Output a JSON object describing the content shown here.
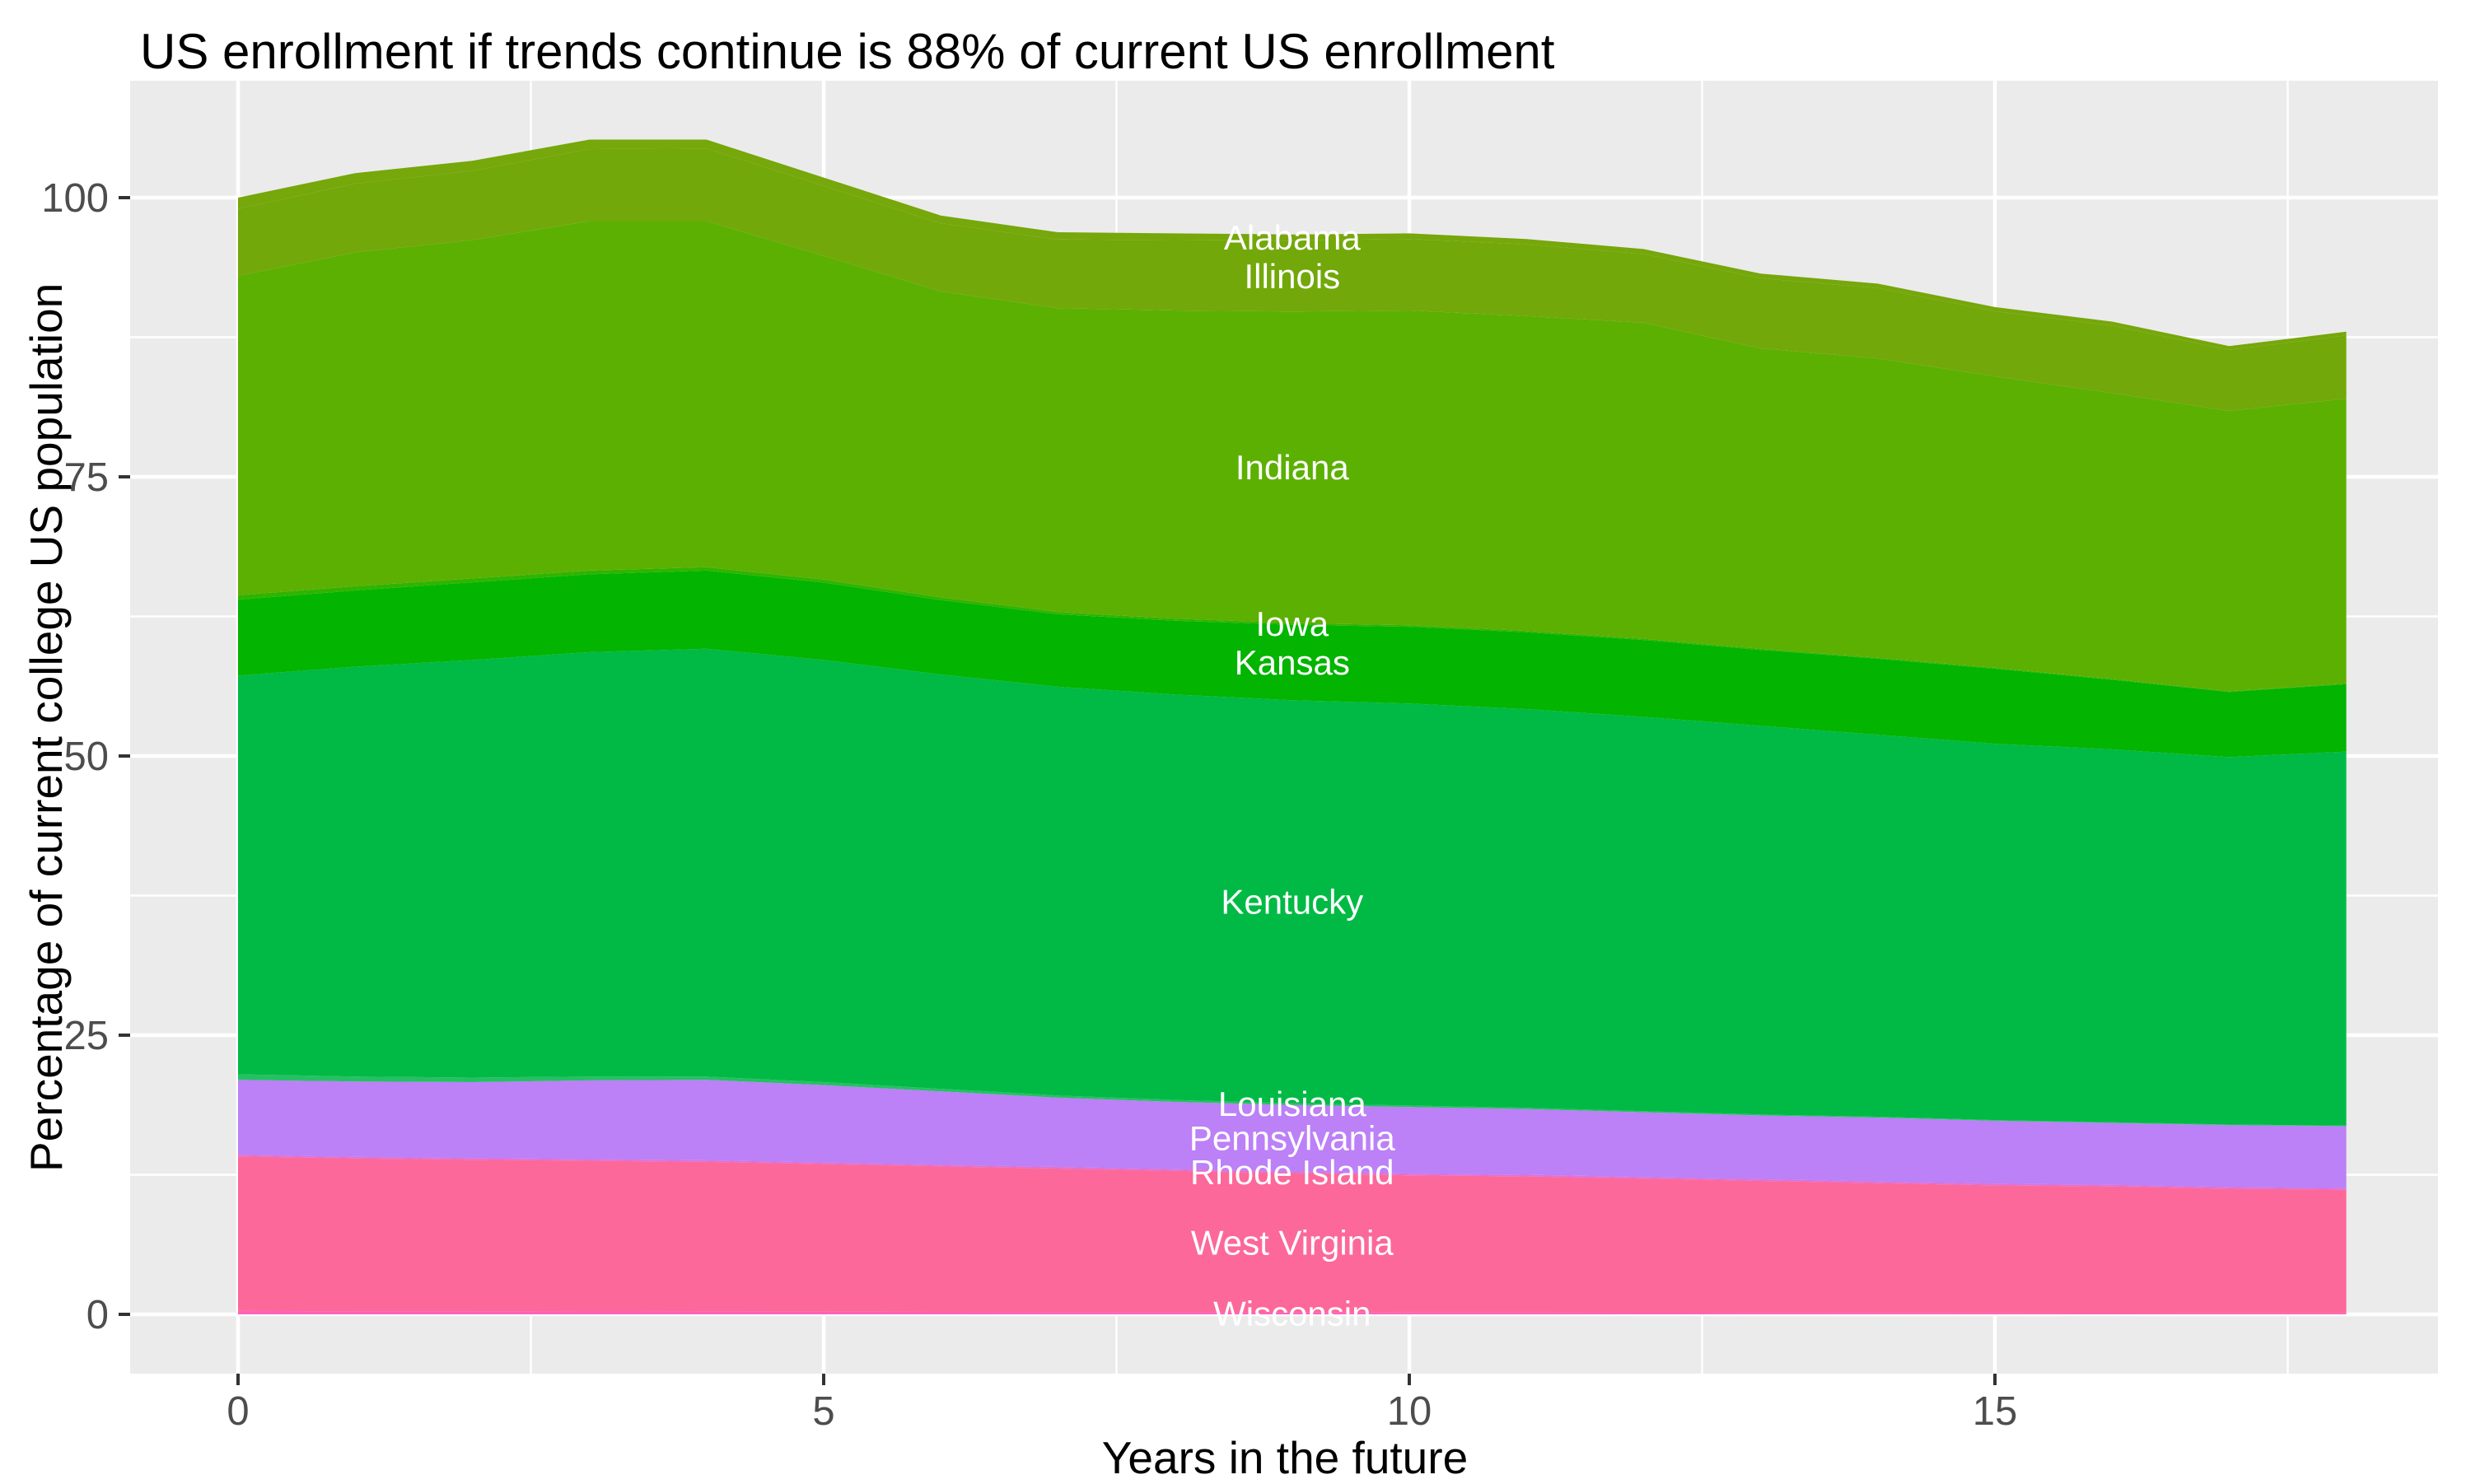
{
  "chart_data": {
    "type": "area",
    "stacked": true,
    "title": "US enrollment if trends continue is 88% of current US enrollment",
    "xlabel": "Years in the future",
    "ylabel": "Percentage of current college US population",
    "years": [
      0,
      1,
      2,
      3,
      4,
      5,
      6,
      7,
      8,
      9,
      10,
      11,
      12,
      13,
      14,
      15,
      16,
      17,
      18
    ],
    "x_ticks": [
      0,
      5,
      10,
      15
    ],
    "x_minor_ticks": [
      2.5,
      7.5,
      12.5,
      17.5
    ],
    "y_ticks": [
      0,
      25,
      50,
      75,
      100
    ],
    "y_minor_ticks": [
      12.5,
      37.5,
      62.5,
      87.5
    ],
    "xlim": [
      -0.9,
      18.8
    ],
    "ylim": [
      -5.3,
      110.5
    ],
    "legend": "none",
    "grid": "on",
    "label_year_index": 9,
    "panel_bg": "#EBEBEB",
    "grid_color": "#FFFFFF",
    "tick_color": "#333333",
    "tick_label_color": "#4D4D4D",
    "label_text_color": "#FFFFFF",
    "series": [
      {
        "name": "Alabama",
        "color": "#76A70B",
        "values": [
          1.0,
          0.95,
          0.9,
          0.85,
          0.8,
          0.75,
          0.7,
          0.65,
          0.6,
          0.55,
          0.5,
          0.48,
          0.45,
          0.42,
          0.4,
          0.38,
          0.36,
          0.34,
          0.33
        ]
      },
      {
        "name": "Illinois",
        "color": "#72A80A",
        "values": [
          6.0,
          6.15,
          6.2,
          6.45,
          6.5,
          6.25,
          6.1,
          6.15,
          6.3,
          6.35,
          6.4,
          6.42,
          6.15,
          6.28,
          6.3,
          5.82,
          6.04,
          5.46,
          5.67
        ]
      },
      {
        "name": "Indiana",
        "color": "#5CB002",
        "values": [
          28.6,
          29.9,
          30.3,
          31.3,
          31.0,
          29.0,
          27.4,
          27.2,
          27.6,
          27.9,
          28.2,
          28.2,
          28.3,
          26.9,
          26.8,
          26.1,
          25.6,
          25.1,
          25.5
        ]
      },
      {
        "name": "Iowa",
        "color": "#30B400",
        "values": [
          0.4,
          0.38,
          0.35,
          0.33,
          0.3,
          0.27,
          0.24,
          0.21,
          0.18,
          0.15,
          0.13,
          0.12,
          0.11,
          0.1,
          0.09,
          0.08,
          0.07,
          0.06,
          0.06
        ]
      },
      {
        "name": "Kansas",
        "color": "#03B400",
        "values": [
          6.8,
          6.82,
          6.95,
          6.97,
          7.0,
          6.93,
          6.66,
          6.49,
          6.62,
          6.75,
          6.87,
          6.88,
          6.89,
          6.8,
          6.81,
          6.72,
          6.23,
          5.84,
          6.04
        ]
      },
      {
        "name": "Kentucky",
        "color": "#00BA45",
        "values": [
          35.7,
          36.7,
          37.4,
          38.0,
          38.3,
          37.8,
          37.1,
          36.6,
          36.3,
          36.1,
          36.0,
          35.7,
          35.3,
          34.8,
          34.2,
          33.7,
          33.4,
          32.9,
          33.5
        ]
      },
      {
        "name": "Louisiana",
        "color": "#26C064",
        "values": [
          0.5,
          0.45,
          0.4,
          0.35,
          0.3,
          0.27,
          0.23,
          0.2,
          0.17,
          0.15,
          0.13,
          0.12,
          0.1,
          0.09,
          0.08,
          0.07,
          0.06,
          0.05,
          0.05
        ]
      },
      {
        "name": "Pennsylvania",
        "color": "#BC80F7",
        "values": [
          6.7,
          6.75,
          6.8,
          7.05,
          7.2,
          6.93,
          6.57,
          6.2,
          6.03,
          5.95,
          5.97,
          5.88,
          5.8,
          5.71,
          5.72,
          5.63,
          5.54,
          5.55,
          5.55
        ]
      },
      {
        "name": "Rhode Island",
        "color": "#E06FD6",
        "values": [
          0.15,
          0.15,
          0.15,
          0.15,
          0.15,
          0.15,
          0.15,
          0.15,
          0.15,
          0.15,
          0.15,
          0.15,
          0.15,
          0.15,
          0.15,
          0.15,
          0.15,
          0.15,
          0.15
        ]
      },
      {
        "name": "West Virginia",
        "color": "#FC6899",
        "values": [
          13.85,
          13.67,
          13.58,
          13.49,
          13.4,
          13.21,
          13.03,
          12.84,
          12.65,
          12.47,
          12.28,
          12.19,
          12.0,
          11.81,
          11.62,
          11.43,
          11.34,
          11.15,
          11.05
        ]
      },
      {
        "name": "Wisconsin",
        "color": "#FF62BC",
        "values": [
          0.3,
          0.28,
          0.27,
          0.26,
          0.25,
          0.24,
          0.22,
          0.21,
          0.2,
          0.18,
          0.17,
          0.16,
          0.15,
          0.14,
          0.13,
          0.12,
          0.11,
          0.1,
          0.1
        ]
      }
    ]
  }
}
